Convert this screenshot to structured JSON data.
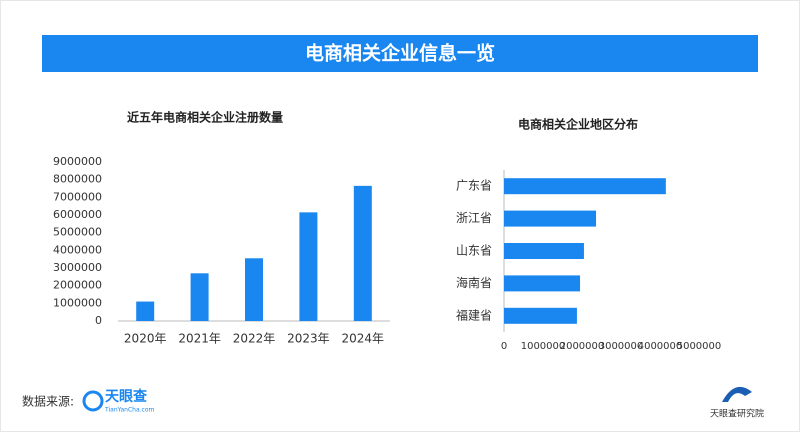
{
  "header": {
    "title": "电商相关企业信息一览"
  },
  "chart_data": [
    {
      "type": "bar",
      "title": "近五年电商相关企业注册数量",
      "categories": [
        "2020年",
        "2021年",
        "2022年",
        "2023年",
        "2024年"
      ],
      "values": [
        1100000,
        2700000,
        3550000,
        6150000,
        7650000
      ],
      "color": "#1a87f0",
      "ylim": [
        0,
        9000000
      ],
      "yticks": [
        0,
        1000000,
        2000000,
        3000000,
        4000000,
        5000000,
        6000000,
        7000000,
        8000000,
        9000000
      ],
      "grid": false
    },
    {
      "type": "barh",
      "title": "电商相关企业地区分布",
      "categories": [
        "广东省",
        "浙江省",
        "山东省",
        "海南省",
        "福建省"
      ],
      "values": [
        4150000,
        2360000,
        2050000,
        1950000,
        1870000
      ],
      "color": "#1a87f0",
      "xlim": [
        0,
        5000000
      ],
      "xticks": [
        0,
        1000000,
        2000000,
        3000000,
        4000000,
        5000000
      ],
      "grid": false
    }
  ],
  "footer": {
    "source_label": "数据来源:",
    "logo": "天眼查",
    "logo_sub": "TianYanCha.com",
    "institute": "天眼查研究院"
  }
}
